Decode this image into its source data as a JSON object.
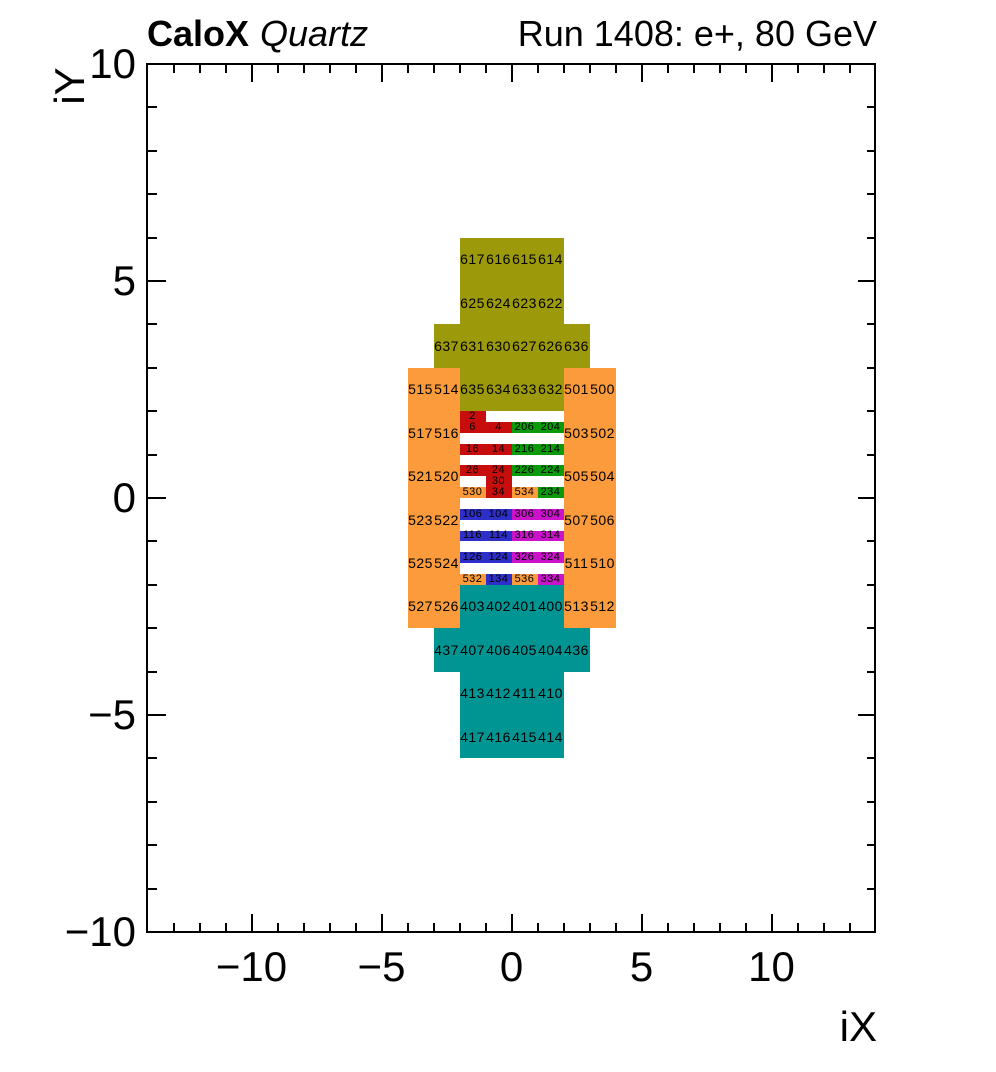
{
  "title": {
    "experiment": "CaloX",
    "detector": "Quartz",
    "run_info": "Run 1408: e+, 80 GeV"
  },
  "axes": {
    "x": {
      "title": "iX",
      "range": [
        -14,
        14
      ],
      "major_ticks": [
        -10,
        -5,
        0,
        5,
        10
      ],
      "major_labels": [
        "−10",
        "−5",
        "0",
        "5",
        "10"
      ],
      "minor_step": 1
    },
    "y": {
      "title": "iY",
      "range": [
        -10,
        10
      ],
      "major_ticks": [
        10,
        5,
        0,
        -5,
        -10
      ],
      "major_labels": [
        "10",
        "5",
        "0",
        "−5",
        "−10"
      ],
      "minor_step": 1
    }
  },
  "palette": {
    "olive": "#9c9a0a",
    "orange": "#fb9b3c",
    "teal": "#009593",
    "red": "#c80d0d",
    "green": "#0a9a0a",
    "blue": "#2e2ec9",
    "magenta": "#c912c9"
  },
  "chart_data": {
    "type": "heatmap",
    "title": "Run 1408: e+, 80 GeV",
    "xlabel": "iX",
    "ylabel": "iY",
    "xlim": [
      -14,
      14
    ],
    "ylim": [
      -10,
      10
    ],
    "grid": false,
    "cells": [
      {
        "label": "617",
        "color": "olive",
        "x": [
          -2,
          -1
        ],
        "y": [
          5,
          6
        ]
      },
      {
        "label": "616",
        "color": "olive",
        "x": [
          -1,
          0
        ],
        "y": [
          5,
          6
        ]
      },
      {
        "label": "615",
        "color": "olive",
        "x": [
          0,
          1
        ],
        "y": [
          5,
          6
        ]
      },
      {
        "label": "614",
        "color": "olive",
        "x": [
          1,
          2
        ],
        "y": [
          5,
          6
        ]
      },
      {
        "label": "625",
        "color": "olive",
        "x": [
          -2,
          -1
        ],
        "y": [
          4,
          5
        ]
      },
      {
        "label": "624",
        "color": "olive",
        "x": [
          -1,
          0
        ],
        "y": [
          4,
          5
        ]
      },
      {
        "label": "623",
        "color": "olive",
        "x": [
          0,
          1
        ],
        "y": [
          4,
          5
        ]
      },
      {
        "label": "622",
        "color": "olive",
        "x": [
          1,
          2
        ],
        "y": [
          4,
          5
        ]
      },
      {
        "label": "637",
        "color": "olive",
        "x": [
          -3,
          -2
        ],
        "y": [
          3,
          4
        ]
      },
      {
        "label": "631",
        "color": "olive",
        "x": [
          -2,
          -1
        ],
        "y": [
          3,
          4
        ]
      },
      {
        "label": "630",
        "color": "olive",
        "x": [
          -1,
          0
        ],
        "y": [
          3,
          4
        ]
      },
      {
        "label": "627",
        "color": "olive",
        "x": [
          0,
          1
        ],
        "y": [
          3,
          4
        ]
      },
      {
        "label": "626",
        "color": "olive",
        "x": [
          1,
          2
        ],
        "y": [
          3,
          4
        ]
      },
      {
        "label": "636",
        "color": "olive",
        "x": [
          2,
          3
        ],
        "y": [
          3,
          4
        ]
      },
      {
        "label": "635",
        "color": "olive",
        "x": [
          -2,
          -1
        ],
        "y": [
          2,
          3
        ]
      },
      {
        "label": "634",
        "color": "olive",
        "x": [
          -1,
          0
        ],
        "y": [
          2,
          3
        ]
      },
      {
        "label": "633",
        "color": "olive",
        "x": [
          0,
          1
        ],
        "y": [
          2,
          3
        ]
      },
      {
        "label": "632",
        "color": "olive",
        "x": [
          1,
          2
        ],
        "y": [
          2,
          3
        ]
      },
      {
        "label": "515",
        "color": "orange",
        "x": [
          -4,
          -3
        ],
        "y": [
          2,
          3
        ]
      },
      {
        "label": "514",
        "color": "orange",
        "x": [
          -3,
          -2
        ],
        "y": [
          2,
          3
        ]
      },
      {
        "label": "501",
        "color": "orange",
        "x": [
          2,
          3
        ],
        "y": [
          2,
          3
        ]
      },
      {
        "label": "500",
        "color": "orange",
        "x": [
          3,
          4
        ],
        "y": [
          2,
          3
        ]
      },
      {
        "label": "517",
        "color": "orange",
        "x": [
          -4,
          -3
        ],
        "y": [
          1,
          2
        ]
      },
      {
        "label": "516",
        "color": "orange",
        "x": [
          -3,
          -2
        ],
        "y": [
          1,
          2
        ]
      },
      {
        "label": "503",
        "color": "orange",
        "x": [
          2,
          3
        ],
        "y": [
          1,
          2
        ]
      },
      {
        "label": "502",
        "color": "orange",
        "x": [
          3,
          4
        ],
        "y": [
          1,
          2
        ]
      },
      {
        "label": "521",
        "color": "orange",
        "x": [
          -4,
          -3
        ],
        "y": [
          0,
          1
        ]
      },
      {
        "label": "520",
        "color": "orange",
        "x": [
          -3,
          -2
        ],
        "y": [
          0,
          1
        ]
      },
      {
        "label": "505",
        "color": "orange",
        "x": [
          2,
          3
        ],
        "y": [
          0,
          1
        ]
      },
      {
        "label": "504",
        "color": "orange",
        "x": [
          3,
          4
        ],
        "y": [
          0,
          1
        ]
      },
      {
        "label": "523",
        "color": "orange",
        "x": [
          -4,
          -3
        ],
        "y": [
          -1,
          0
        ]
      },
      {
        "label": "522",
        "color": "orange",
        "x": [
          -3,
          -2
        ],
        "y": [
          -1,
          0
        ]
      },
      {
        "label": "507",
        "color": "orange",
        "x": [
          2,
          3
        ],
        "y": [
          -1,
          0
        ]
      },
      {
        "label": "506",
        "color": "orange",
        "x": [
          3,
          4
        ],
        "y": [
          -1,
          0
        ]
      },
      {
        "label": "525",
        "color": "orange",
        "x": [
          -4,
          -3
        ],
        "y": [
          -2,
          -1
        ]
      },
      {
        "label": "524",
        "color": "orange",
        "x": [
          -3,
          -2
        ],
        "y": [
          -2,
          -1
        ]
      },
      {
        "label": "511",
        "color": "orange",
        "x": [
          2,
          3
        ],
        "y": [
          -2,
          -1
        ]
      },
      {
        "label": "510",
        "color": "orange",
        "x": [
          3,
          4
        ],
        "y": [
          -2,
          -1
        ]
      },
      {
        "label": "527",
        "color": "orange",
        "x": [
          -4,
          -3
        ],
        "y": [
          -3,
          -2
        ]
      },
      {
        "label": "526",
        "color": "orange",
        "x": [
          -3,
          -2
        ],
        "y": [
          -3,
          -2
        ]
      },
      {
        "label": "513",
        "color": "orange",
        "x": [
          2,
          3
        ],
        "y": [
          -3,
          -2
        ]
      },
      {
        "label": "512",
        "color": "orange",
        "x": [
          3,
          4
        ],
        "y": [
          -3,
          -2
        ]
      },
      {
        "label": "403",
        "color": "teal",
        "x": [
          -2,
          -1
        ],
        "y": [
          -3,
          -2
        ]
      },
      {
        "label": "402",
        "color": "teal",
        "x": [
          -1,
          0
        ],
        "y": [
          -3,
          -2
        ]
      },
      {
        "label": "401",
        "color": "teal",
        "x": [
          0,
          1
        ],
        "y": [
          -3,
          -2
        ]
      },
      {
        "label": "400",
        "color": "teal",
        "x": [
          1,
          2
        ],
        "y": [
          -3,
          -2
        ]
      },
      {
        "label": "437",
        "color": "teal",
        "x": [
          -3,
          -2
        ],
        "y": [
          -4,
          -3
        ]
      },
      {
        "label": "407",
        "color": "teal",
        "x": [
          -2,
          -1
        ],
        "y": [
          -4,
          -3
        ]
      },
      {
        "label": "406",
        "color": "teal",
        "x": [
          -1,
          0
        ],
        "y": [
          -4,
          -3
        ]
      },
      {
        "label": "405",
        "color": "teal",
        "x": [
          0,
          1
        ],
        "y": [
          -4,
          -3
        ]
      },
      {
        "label": "404",
        "color": "teal",
        "x": [
          1,
          2
        ],
        "y": [
          -4,
          -3
        ]
      },
      {
        "label": "436",
        "color": "teal",
        "x": [
          2,
          3
        ],
        "y": [
          -4,
          -3
        ]
      },
      {
        "label": "413",
        "color": "teal",
        "x": [
          -2,
          -1
        ],
        "y": [
          -5,
          -4
        ]
      },
      {
        "label": "412",
        "color": "teal",
        "x": [
          -1,
          0
        ],
        "y": [
          -5,
          -4
        ]
      },
      {
        "label": "411",
        "color": "teal",
        "x": [
          0,
          1
        ],
        "y": [
          -5,
          -4
        ]
      },
      {
        "label": "410",
        "color": "teal",
        "x": [
          1,
          2
        ],
        "y": [
          -5,
          -4
        ]
      },
      {
        "label": "417",
        "color": "teal",
        "x": [
          -2,
          -1
        ],
        "y": [
          -6,
          -5
        ]
      },
      {
        "label": "416",
        "color": "teal",
        "x": [
          -1,
          0
        ],
        "y": [
          -6,
          -5
        ]
      },
      {
        "label": "415",
        "color": "teal",
        "x": [
          0,
          1
        ],
        "y": [
          -6,
          -5
        ]
      },
      {
        "label": "414",
        "color": "teal",
        "x": [
          1,
          2
        ],
        "y": [
          -6,
          -5
        ]
      },
      {
        "label": "2",
        "color": "red",
        "x": [
          -2,
          -1
        ],
        "y": [
          1.75,
          2
        ]
      },
      {
        "label": "6",
        "color": "red",
        "x": [
          -2,
          -1
        ],
        "y": [
          1.5,
          1.75
        ]
      },
      {
        "label": "4",
        "color": "red",
        "x": [
          -1,
          0
        ],
        "y": [
          1.5,
          1.75
        ]
      },
      {
        "label": "16",
        "color": "red",
        "x": [
          -2,
          -1
        ],
        "y": [
          1,
          1.25
        ]
      },
      {
        "label": "14",
        "color": "red",
        "x": [
          -1,
          0
        ],
        "y": [
          1,
          1.25
        ]
      },
      {
        "label": "26",
        "color": "red",
        "x": [
          -2,
          -1
        ],
        "y": [
          0.5,
          0.75
        ]
      },
      {
        "label": "24",
        "color": "red",
        "x": [
          -1,
          0
        ],
        "y": [
          0.5,
          0.75
        ]
      },
      {
        "label": "30",
        "color": "red",
        "x": [
          -1,
          0
        ],
        "y": [
          0.25,
          0.5
        ]
      },
      {
        "label": "34",
        "color": "red",
        "x": [
          -1,
          0
        ],
        "y": [
          0,
          0.25
        ]
      },
      {
        "label": "206",
        "color": "green",
        "x": [
          0,
          1
        ],
        "y": [
          1.5,
          1.75
        ]
      },
      {
        "label": "204",
        "color": "green",
        "x": [
          1,
          2
        ],
        "y": [
          1.5,
          1.75
        ]
      },
      {
        "label": "216",
        "color": "green",
        "x": [
          0,
          1
        ],
        "y": [
          1,
          1.25
        ]
      },
      {
        "label": "214",
        "color": "green",
        "x": [
          1,
          2
        ],
        "y": [
          1,
          1.25
        ]
      },
      {
        "label": "226",
        "color": "green",
        "x": [
          0,
          1
        ],
        "y": [
          0.5,
          0.75
        ]
      },
      {
        "label": "224",
        "color": "green",
        "x": [
          1,
          2
        ],
        "y": [
          0.5,
          0.75
        ]
      },
      {
        "label": "234",
        "color": "green",
        "x": [
          1,
          2
        ],
        "y": [
          0,
          0.25
        ]
      },
      {
        "label": "530",
        "color": "orange",
        "x": [
          -2,
          -1
        ],
        "y": [
          0,
          0.25
        ]
      },
      {
        "label": "534",
        "color": "orange",
        "x": [
          0,
          1
        ],
        "y": [
          0,
          0.25
        ]
      },
      {
        "label": "532",
        "color": "orange",
        "x": [
          -2,
          -1
        ],
        "y": [
          -2,
          -1.75
        ]
      },
      {
        "label": "536",
        "color": "orange",
        "x": [
          0,
          1
        ],
        "y": [
          -2,
          -1.75
        ]
      },
      {
        "label": "106",
        "color": "blue",
        "x": [
          -2,
          -1
        ],
        "y": [
          -0.5,
          -0.25
        ]
      },
      {
        "label": "104",
        "color": "blue",
        "x": [
          -1,
          0
        ],
        "y": [
          -0.5,
          -0.25
        ]
      },
      {
        "label": "116",
        "color": "blue",
        "x": [
          -2,
          -1
        ],
        "y": [
          -1,
          -0.75
        ]
      },
      {
        "label": "114",
        "color": "blue",
        "x": [
          -1,
          0
        ],
        "y": [
          -1,
          -0.75
        ]
      },
      {
        "label": "126",
        "color": "blue",
        "x": [
          -2,
          -1
        ],
        "y": [
          -1.5,
          -1.25
        ]
      },
      {
        "label": "124",
        "color": "blue",
        "x": [
          -1,
          0
        ],
        "y": [
          -1.5,
          -1.25
        ]
      },
      {
        "label": "134",
        "color": "blue",
        "x": [
          -1,
          0
        ],
        "y": [
          -2,
          -1.75
        ]
      },
      {
        "label": "306",
        "color": "magenta",
        "x": [
          0,
          1
        ],
        "y": [
          -0.5,
          -0.25
        ]
      },
      {
        "label": "304",
        "color": "magenta",
        "x": [
          1,
          2
        ],
        "y": [
          -0.5,
          -0.25
        ]
      },
      {
        "label": "316",
        "color": "magenta",
        "x": [
          0,
          1
        ],
        "y": [
          -1,
          -0.75
        ]
      },
      {
        "label": "314",
        "color": "magenta",
        "x": [
          1,
          2
        ],
        "y": [
          -1,
          -0.75
        ]
      },
      {
        "label": "326",
        "color": "magenta",
        "x": [
          0,
          1
        ],
        "y": [
          -1.5,
          -1.25
        ]
      },
      {
        "label": "324",
        "color": "magenta",
        "x": [
          1,
          2
        ],
        "y": [
          -1.5,
          -1.25
        ]
      },
      {
        "label": "334",
        "color": "magenta",
        "x": [
          1,
          2
        ],
        "y": [
          -2,
          -1.75
        ]
      }
    ]
  }
}
